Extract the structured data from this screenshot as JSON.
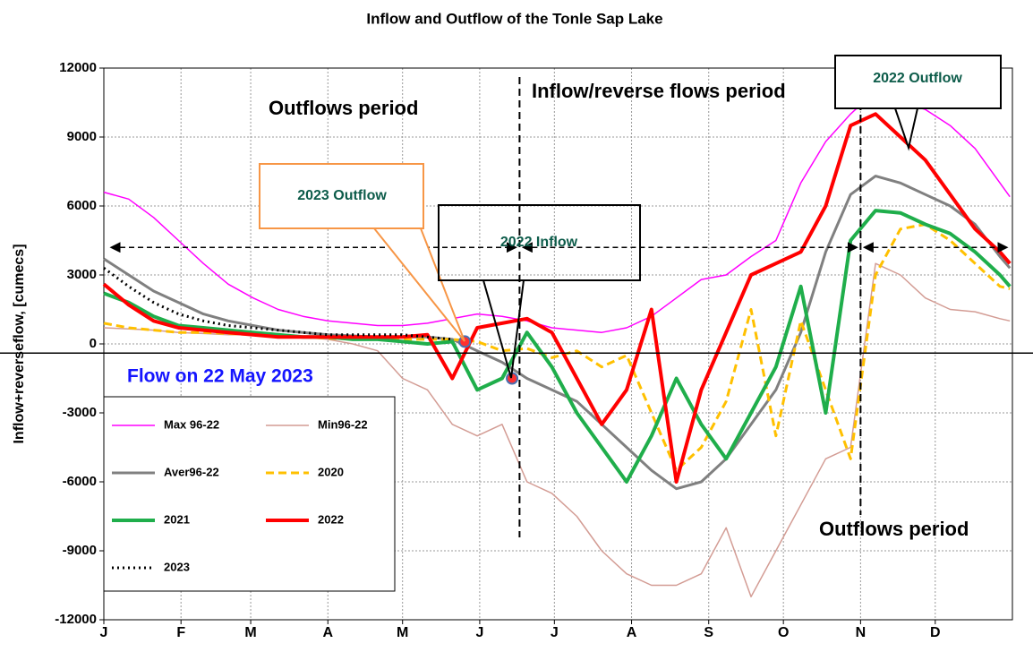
{
  "chart_data": {
    "type": "line",
    "title": "Inflow and Outflow of the Tonle Sap Lake",
    "y_label": "Inflow+reverseflow, [cumecs]",
    "x": [
      0,
      10,
      20,
      30,
      40,
      50,
      60,
      70,
      80,
      90,
      100,
      110,
      120,
      130,
      140,
      150,
      160,
      170,
      180,
      190,
      200,
      210,
      220,
      230,
      240,
      250,
      260,
      270,
      280,
      290,
      300,
      310,
      320,
      330,
      340,
      350,
      360,
      364
    ],
    "xlim": [
      0,
      365
    ],
    "xticks": [
      {
        "value": 0,
        "label": "J"
      },
      {
        "value": 31,
        "label": "F"
      },
      {
        "value": 59,
        "label": "M"
      },
      {
        "value": 90,
        "label": "A"
      },
      {
        "value": 120,
        "label": "M"
      },
      {
        "value": 151,
        "label": "J"
      },
      {
        "value": 181,
        "label": "J"
      },
      {
        "value": 212,
        "label": "A"
      },
      {
        "value": 243,
        "label": "S"
      },
      {
        "value": 273,
        "label": "O"
      },
      {
        "value": 304,
        "label": "N"
      },
      {
        "value": 334,
        "label": "D"
      }
    ],
    "ylim": [
      -12000,
      12000
    ],
    "yticks": [
      -12000,
      -9000,
      -6000,
      -3000,
      0,
      3000,
      6000,
      9000,
      12000
    ],
    "grid": true,
    "legend": "lower left",
    "series": [
      {
        "name": "Max 96-22",
        "color": "#ff00ff",
        "width": 1.5,
        "style": "solid",
        "values": [
          6600,
          6300,
          5500,
          4500,
          3500,
          2600,
          2000,
          1500,
          1200,
          1000,
          900,
          800,
          800,
          900,
          1100,
          1300,
          1200,
          1000,
          700,
          600,
          500,
          700,
          1200,
          2000,
          2800,
          3000,
          3800,
          4500,
          7000,
          8800,
          10000,
          11000,
          10500,
          10200,
          9500,
          8500,
          7000,
          6400
        ]
      },
      {
        "name": "Min96-22",
        "color": "#d39c94",
        "width": 1.5,
        "style": "solid",
        "values": [
          700,
          650,
          600,
          500,
          450,
          400,
          400,
          350,
          300,
          200,
          0,
          -300,
          -1500,
          -2000,
          -3500,
          -4000,
          -3500,
          -6000,
          -6500,
          -7500,
          -9000,
          -10000,
          -10500,
          -10500,
          -10000,
          -8000,
          -11000,
          -9000,
          -7000,
          -5000,
          -4500,
          3500,
          3000,
          2000,
          1500,
          1400,
          1100,
          1000
        ]
      },
      {
        "name": "Aver96-22",
        "color": "#808080",
        "width": 3,
        "style": "solid",
        "values": [
          3700,
          3000,
          2300,
          1800,
          1300,
          1000,
          800,
          600,
          500,
          400,
          350,
          300,
          300,
          300,
          200,
          -300,
          -800,
          -1500,
          -2000,
          -2500,
          -3500,
          -4500,
          -5500,
          -6300,
          -6000,
          -5000,
          -3500,
          -2000,
          500,
          4000,
          6500,
          7300,
          7000,
          6500,
          6000,
          5200,
          3800,
          3300
        ]
      },
      {
        "name": "2020",
        "color": "#ffc000",
        "width": 3,
        "style": "dashed",
        "values": [
          900,
          700,
          600,
          500,
          500,
          450,
          400,
          350,
          300,
          250,
          200,
          200,
          200,
          200,
          200,
          100,
          -300,
          -200,
          -600,
          -300,
          -1000,
          -500,
          -3000,
          -5500,
          -4500,
          -2500,
          1500,
          -4000,
          1000,
          -2000,
          -5000,
          3000,
          5000,
          5200,
          4500,
          3500,
          2500,
          2400
        ]
      },
      {
        "name": "2021",
        "color": "#1fae4b",
        "width": 4,
        "style": "solid",
        "values": [
          2200,
          1800,
          1200,
          800,
          700,
          600,
          500,
          400,
          300,
          300,
          200,
          200,
          100,
          0,
          100,
          -2000,
          -1500,
          500,
          -1000,
          -3000,
          -4500,
          -6000,
          -4000,
          -1500,
          -3500,
          -5000,
          -3000,
          -1000,
          2500,
          -3000,
          4500,
          5800,
          5700,
          5200,
          4800,
          4000,
          3000,
          2500
        ]
      },
      {
        "name": "2022",
        "color": "#ff0000",
        "width": 4,
        "style": "solid",
        "values": [
          2600,
          1700,
          1000,
          700,
          600,
          500,
          400,
          300,
          300,
          300,
          300,
          300,
          300,
          400,
          -1500,
          700,
          900,
          1100,
          500,
          -1500,
          -3500,
          -2000,
          1500,
          -6000,
          -2000,
          500,
          3000,
          3500,
          4000,
          6000,
          9500,
          10000,
          9000,
          8000,
          6500,
          5000,
          4000,
          3500
        ]
      },
      {
        "name": "2023",
        "color": "#000000",
        "width": 3,
        "style": "dotted",
        "values": [
          3300,
          2500,
          1800,
          1300,
          1000,
          800,
          700,
          600,
          500,
          400,
          400,
          400,
          400,
          300,
          200,
          null,
          null,
          null,
          null,
          null,
          null,
          null,
          null,
          null,
          null,
          null,
          null,
          null,
          null,
          null,
          null,
          null,
          null,
          null,
          null,
          null,
          null,
          null
        ]
      }
    ],
    "points": [
      {
        "x": 145,
        "y": 100
      },
      {
        "x": 164,
        "y": -1500
      }
    ],
    "vlines": [
      167,
      304
    ],
    "hline": -400,
    "arrow_line": 4200,
    "annotations": [
      "Outflows period",
      "Inflow/reverse flows period",
      "Outflows period",
      "Flow on 22 May 2023",
      "2023 Outflow",
      "2022 Inflow",
      "2022 Outflow"
    ]
  }
}
